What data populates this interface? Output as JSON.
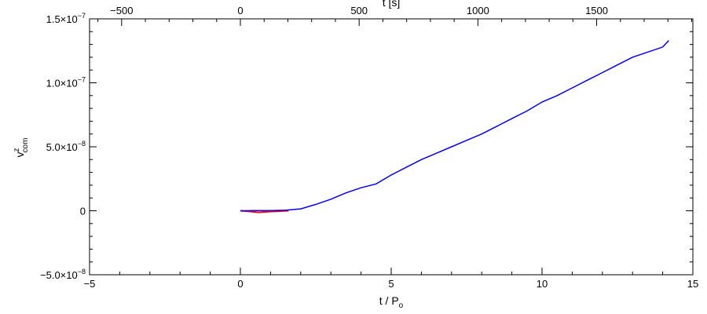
{
  "chart_data": {
    "type": "line",
    "xlabel": "t / P",
    "xlabel_sub": "o",
    "top_xlabel": "t [s]",
    "ylabel": "v",
    "ylabel_sup": "z",
    "ylabel_sub": "com",
    "xlim": [
      -5,
      15
    ],
    "ylim": [
      -5e-08,
      1.5e-07
    ],
    "top_xlim": [
      -635,
      1905
    ],
    "x_ticks": [
      -5,
      0,
      5,
      10,
      15
    ],
    "x_tick_labels": [
      "−5",
      "0",
      "5",
      "10",
      "15"
    ],
    "top_x_ticks": [
      -500,
      0,
      500,
      1000,
      1500
    ],
    "top_x_tick_labels": [
      "−500",
      "0",
      "500",
      "1000",
      "1500"
    ],
    "y_ticks": [
      -5e-08,
      0,
      5e-08,
      1e-07,
      1.5e-07
    ],
    "y_tick_labels": [
      {
        "mantissa": "−5.0×10",
        "exp": "−8"
      },
      {
        "mantissa": "0",
        "exp": ""
      },
      {
        "mantissa": "5.0×10",
        "exp": "−8"
      },
      {
        "mantissa": "1.0×10",
        "exp": "−7"
      },
      {
        "mantissa": "1.5×10",
        "exp": "−7"
      }
    ],
    "grid": false,
    "colors": {
      "series_early": "#ff0000",
      "series_main": "#0000ff",
      "axes": "#000000"
    },
    "series": [
      {
        "color": "#ff0000",
        "x": [
          0.0,
          0.2,
          0.4,
          0.6,
          0.8,
          1.0,
          1.2,
          1.4,
          1.6
        ],
        "y": [
          0.0,
          -3e-10,
          -8e-10,
          -1.2e-09,
          -9e-10,
          -6e-10,
          -5e-10,
          -2e-10,
          0.0
        ]
      },
      {
        "color": "#0000ff",
        "x": [
          0.0,
          0.5,
          1.0,
          1.5,
          2.0,
          2.5,
          3.0,
          3.5,
          4.0,
          4.5,
          5.0,
          5.5,
          6.0,
          6.5,
          7.0,
          7.5,
          8.0,
          8.5,
          9.0,
          9.5,
          10.0,
          10.5,
          11.0,
          11.5,
          12.0,
          12.5,
          13.0,
          13.5,
          14.0,
          14.2
        ],
        "y": [
          0.0,
          1e-10,
          2e-10,
          5e-10,
          1.5e-09,
          5e-09,
          9e-09,
          1.4e-08,
          1.8e-08,
          2.1e-08,
          2.8e-08,
          3.4e-08,
          4e-08,
          4.5e-08,
          5e-08,
          5.5e-08,
          6e-08,
          6.6e-08,
          7.2e-08,
          7.8e-08,
          8.5e-08,
          9e-08,
          9.6e-08,
          1.02e-07,
          1.08e-07,
          1.14e-07,
          1.2e-07,
          1.24e-07,
          1.28e-07,
          1.33e-07
        ]
      }
    ]
  }
}
